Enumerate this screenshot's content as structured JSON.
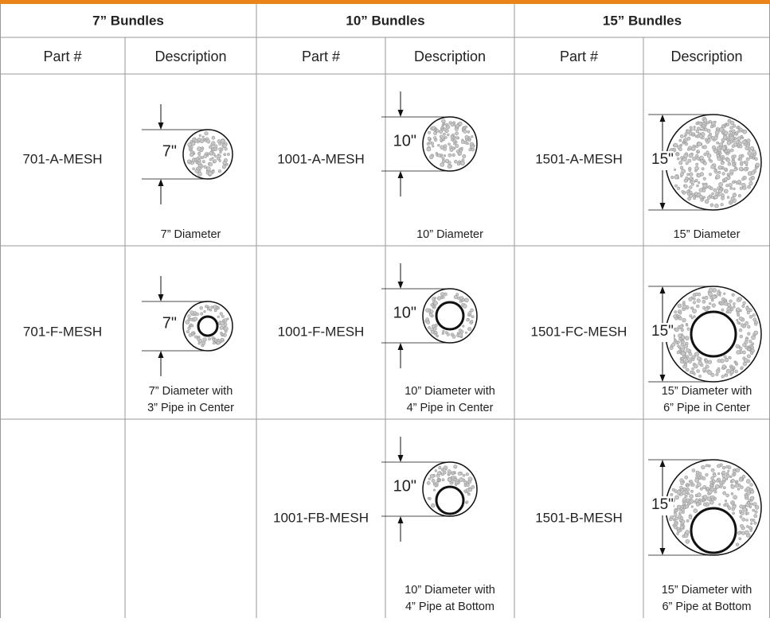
{
  "table": {
    "groups": [
      "7” Bundles",
      "10” Bundles",
      "15” Bundles"
    ],
    "columns": [
      "Part #",
      "Description",
      "Part #",
      "Description",
      "Part #",
      "Description"
    ],
    "rows": [
      [
        {
          "part": "701-A-MESH",
          "dimension": "7\"",
          "caption": [
            "7” Diameter"
          ]
        },
        {
          "part": "1001-A-MESH",
          "dimension": "10\"",
          "caption": [
            "10” Diameter"
          ]
        },
        {
          "part": "1501-A-MESH",
          "dimension": "15\"",
          "caption": [
            "15” Diameter"
          ]
        }
      ],
      [
        {
          "part": "701-F-MESH",
          "dimension": "7\"",
          "caption": [
            "7” Diameter with",
            "3” Pipe in Center"
          ]
        },
        {
          "part": "1001-F-MESH",
          "dimension": "10\"",
          "caption": [
            "10” Diameter with",
            "4” Pipe in Center"
          ]
        },
        {
          "part": "1501-FC-MESH",
          "dimension": "15\"",
          "caption": [
            "15” Diameter with",
            "6” Pipe in Center"
          ]
        }
      ],
      [
        null,
        {
          "part": "1001-FB-MESH",
          "dimension": "10\"",
          "caption": [
            "10” Diameter with",
            "4” Pipe at Bottom"
          ]
        },
        {
          "part": "1501-B-MESH",
          "dimension": "15\"",
          "caption": [
            "15” Diameter with",
            "6” Pipe at Bottom"
          ]
        }
      ]
    ]
  }
}
